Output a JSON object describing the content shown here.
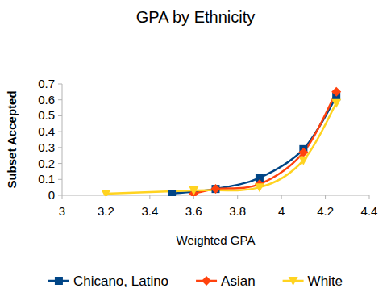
{
  "chart_data": {
    "type": "line",
    "title": "GPA by Ethnicity",
    "x_label": "Weighted GPA",
    "y_label": "Subset Accepted",
    "line_style": "smooth",
    "legend": "bottom",
    "grid": false,
    "xlim": [
      3,
      4.4
    ],
    "xticks": [
      3,
      3.2,
      3.4,
      3.6,
      3.8,
      4,
      4.2,
      4.4
    ],
    "ylim": [
      0,
      0.7
    ],
    "yticks": [
      0,
      0.1,
      0.2,
      0.3,
      0.4,
      0.5,
      0.6,
      0.7
    ],
    "series": [
      {
        "name": "Chicano, Latino",
        "color": "#004586",
        "marker": "square",
        "x": [
          3.5,
          3.7,
          3.9,
          4.1,
          4.25
        ],
        "values": [
          0.01,
          0.04,
          0.11,
          0.29,
          0.62
        ]
      },
      {
        "name": "Asian",
        "color": "#ff420e",
        "marker": "diamond",
        "x": [
          3.6,
          3.7,
          3.9,
          4.1,
          4.25
        ],
        "values": [
          0.01,
          0.04,
          0.07,
          0.27,
          0.65
        ]
      },
      {
        "name": "White",
        "color": "#ffd320",
        "marker": "triangle-down",
        "x": [
          3.2,
          3.6,
          3.9,
          4.1,
          4.25
        ],
        "values": [
          0.01,
          0.03,
          0.05,
          0.22,
          0.58
        ]
      }
    ]
  }
}
